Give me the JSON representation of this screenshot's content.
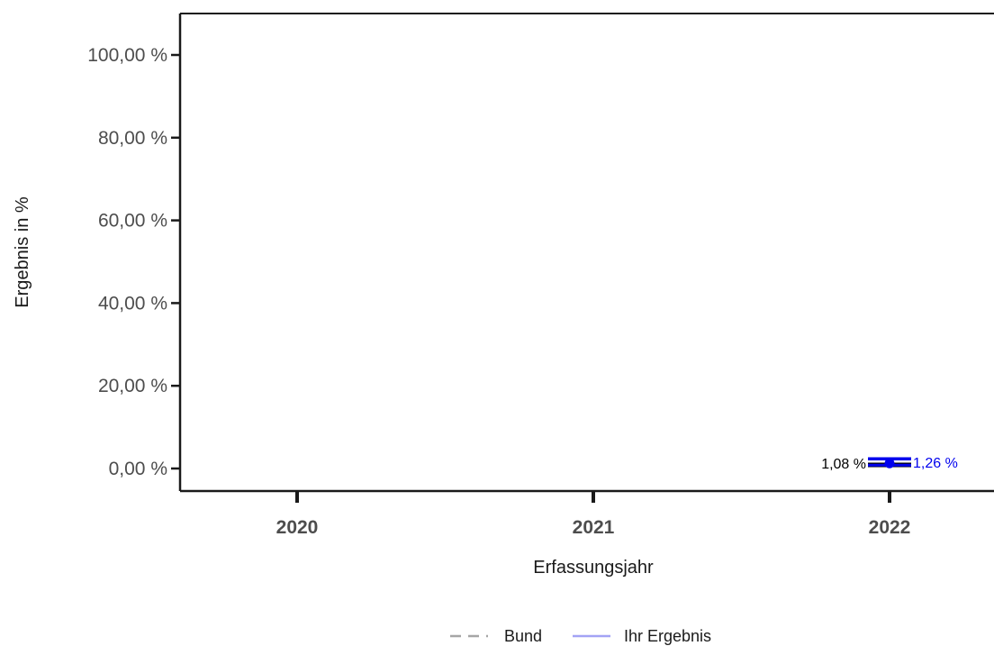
{
  "chart_data": {
    "type": "line",
    "title": "",
    "xlabel": "Erfassungsjahr",
    "ylabel": "Ergebnis in %",
    "categories": [
      "2020",
      "2021",
      "2022"
    ],
    "ylim": [
      0,
      100
    ],
    "y_ticks": [
      {
        "value": 0,
        "label": "0,00 %"
      },
      {
        "value": 20,
        "label": "20,00 %"
      },
      {
        "value": 40,
        "label": "40,00 %"
      },
      {
        "value": 60,
        "label": "60,00 %"
      },
      {
        "value": 80,
        "label": "80,00 %"
      },
      {
        "value": 100,
        "label": "100,00 %"
      }
    ],
    "grid": false,
    "legend_position": "bottom",
    "series": [
      {
        "name": "Bund",
        "color": "#000000",
        "legend_color": "#a6a6a6",
        "line_style": "dashed",
        "points": [
          {
            "x": "2022",
            "y": 1.08,
            "label": "1,08 %"
          }
        ]
      },
      {
        "name": "Ihr Ergebnis",
        "color": "#0000ee",
        "legend_color": "#a3a3f5",
        "line_style": "solid",
        "points": [
          {
            "x": "2022",
            "y": 1.26,
            "label": "1,26 %"
          }
        ]
      }
    ]
  }
}
